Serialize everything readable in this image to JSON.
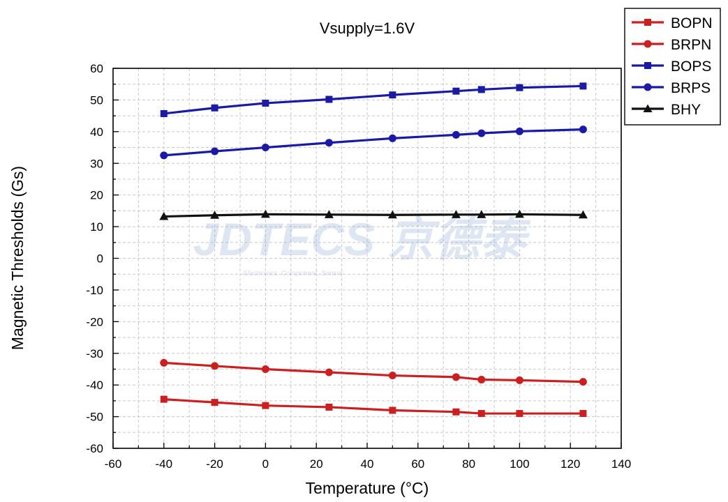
{
  "chart_data": {
    "type": "line",
    "title": "Vsupply=1.6V",
    "xlabel": "Temperature (°C)",
    "ylabel": "Magnetic Thresholds (Gs)",
    "xlim": [
      -60,
      140
    ],
    "ylim": [
      -60,
      60
    ],
    "x_ticks": [
      -60,
      -40,
      -20,
      0,
      20,
      40,
      60,
      80,
      100,
      120,
      140
    ],
    "y_ticks": [
      60,
      50,
      40,
      30,
      20,
      10,
      0,
      -10,
      -20,
      -30,
      -40,
      -50,
      -60
    ],
    "grid": true,
    "legend_position": "top-right",
    "x": [
      -40,
      -20,
      0,
      25,
      50,
      75,
      85,
      100,
      125
    ],
    "series": [
      {
        "name": "BOPN",
        "color": "#cc1f1f",
        "marker": "square",
        "values": [
          -44.5,
          -45.5,
          -46.5,
          -47,
          -48,
          -48.5,
          -49,
          -49,
          -49
        ]
      },
      {
        "name": "BRPN",
        "color": "#cc1f1f",
        "marker": "circle",
        "values": [
          -33,
          -34,
          -35,
          -36,
          -37,
          -37.5,
          -38.3,
          -38.5,
          -39
        ]
      },
      {
        "name": "BOPS",
        "color": "#1a1aa6",
        "marker": "square",
        "values": [
          45.7,
          47.5,
          49,
          50.2,
          51.6,
          52.8,
          53.3,
          53.9,
          54.4
        ]
      },
      {
        "name": "BRPS",
        "color": "#1a1aa6",
        "marker": "circle",
        "values": [
          32.5,
          33.8,
          35,
          36.5,
          37.9,
          39,
          39.5,
          40.1,
          40.7
        ]
      },
      {
        "name": "BHY",
        "color": "#111111",
        "marker": "triangle",
        "values": [
          13.2,
          13.6,
          13.9,
          13.8,
          13.7,
          13.8,
          13.8,
          13.9,
          13.7
        ]
      }
    ]
  },
  "watermark": {
    "brand": "JDTECS 京德泰",
    "tagline": "Electronics, Component, Sensor"
  }
}
